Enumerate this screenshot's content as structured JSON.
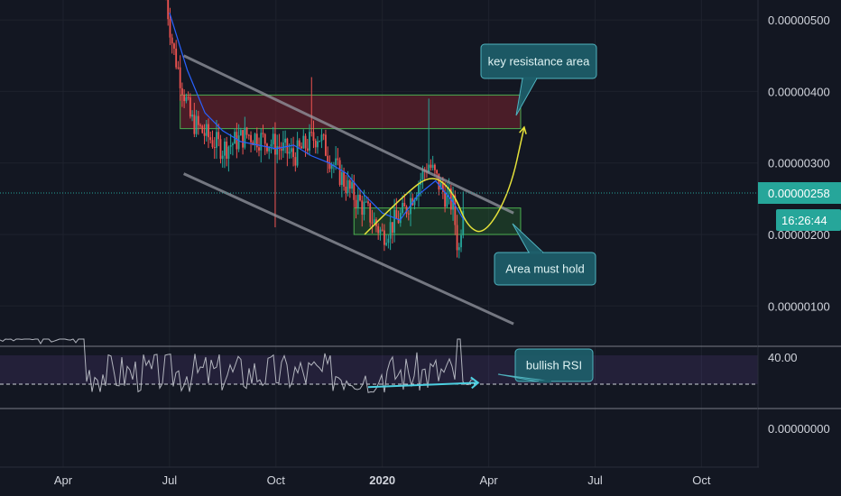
{
  "colors": {
    "background": "#131722",
    "grid": "#1e222d",
    "axis_text": "#d1d4dc",
    "candle_up": "#26a69a",
    "candle_down": "#ef5350",
    "moving_average": "#2962ff",
    "channel": "#9598a1",
    "resistance_zone": "#b22833",
    "support_zone": "#2e7d32",
    "projection": "#e5e13a",
    "rsi_line": "#b2b5be",
    "rsi_band": "#7e57c2",
    "rsi_trend": "#4dd0e1",
    "price_badge": "#26a69a",
    "callout_fill": "#1e5f6b",
    "callout_border": "#4fb3bf"
  },
  "chart_data": [
    {
      "type": "candlestick",
      "panel": "price",
      "y_axis_ticks": [
        "0.00000500",
        "0.00000400",
        "0.00000300",
        "0.00000200",
        "0.00000100"
      ],
      "y_axis_tick_values": [
        5.0,
        4.0,
        3.0,
        2.0,
        1.0
      ],
      "y_unit_scale": "1e-6",
      "ylim": [
        0.3,
        5.3
      ],
      "x_axis_ticks": [
        "Apr",
        "Jul",
        "Oct",
        "2020",
        "Apr",
        "Jul",
        "Oct"
      ],
      "x_axis_tick_months": [
        3,
        6,
        9,
        12,
        15,
        18,
        21
      ],
      "x_origin_label": "2019-01",
      "xlim": [
        2.0,
        23.5
      ],
      "current_price_label": "0.00000258",
      "current_price": 2.58,
      "countdown_label": "16:26:44",
      "grid": true,
      "candle_window_months": [
        5.9,
        14.3
      ],
      "key_prices": {
        "start_high": 5.3,
        "early_close": 4.6,
        "mid_range": 3.3,
        "oct_spike_high": 4.2,
        "jan_low": 2.0,
        "feb_high": 3.9,
        "mar_low": 1.5,
        "last_close": 2.6
      },
      "moving_average": [
        [
          6.0,
          5.1
        ],
        [
          6.5,
          4.3
        ],
        [
          7.0,
          3.7
        ],
        [
          7.5,
          3.45
        ],
        [
          8.0,
          3.3
        ],
        [
          8.5,
          3.25
        ],
        [
          9.0,
          3.2
        ],
        [
          9.5,
          3.25
        ],
        [
          10.0,
          3.1
        ],
        [
          10.5,
          3.0
        ],
        [
          11.0,
          2.85
        ],
        [
          11.5,
          2.55
        ],
        [
          12.0,
          2.3
        ],
        [
          12.5,
          2.2
        ],
        [
          13.0,
          2.55
        ],
        [
          13.5,
          2.75
        ],
        [
          14.0,
          2.45
        ],
        [
          14.3,
          2.2
        ]
      ],
      "channel_upper": [
        [
          6.4,
          4.5
        ],
        [
          15.7,
          2.3
        ]
      ],
      "channel_lower": [
        [
          6.4,
          2.85
        ],
        [
          15.7,
          0.75
        ]
      ],
      "resistance_zone": {
        "x": [
          6.3,
          15.9
        ],
        "y": [
          3.48,
          3.95
        ]
      },
      "support_zone": {
        "x": [
          11.2,
          15.9
        ],
        "y": [
          2.0,
          2.37
        ]
      },
      "projection_path": [
        [
          11.5,
          2.0
        ],
        [
          12.6,
          2.55
        ],
        [
          13.4,
          2.85
        ],
        [
          14.0,
          2.6
        ],
        [
          14.4,
          2.1
        ],
        [
          14.9,
          2.0
        ],
        [
          15.6,
          2.6
        ],
        [
          16.0,
          3.5
        ]
      ],
      "annotations": [
        {
          "text": "key resistance area"
        },
        {
          "text": "Area must hold"
        }
      ]
    },
    {
      "type": "line",
      "panel": "rsi",
      "y_axis_ticks": [
        "40.00"
      ],
      "band": [
        30,
        40
      ],
      "dashed_level": 30,
      "trend_line": {
        "x": [
          11.6,
          14.7
        ],
        "y": [
          29,
          30.5
        ]
      },
      "annotation": {
        "text": "bullish RSI"
      }
    },
    {
      "type": "line",
      "panel": "indicator",
      "y_axis_ticks": [
        "0.00000000"
      ]
    }
  ]
}
